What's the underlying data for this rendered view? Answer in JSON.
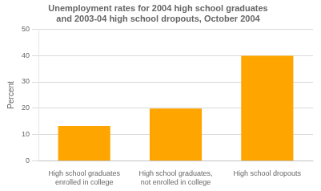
{
  "chart_data": {
    "type": "bar",
    "title": "Unemployment rates for 2004 high school graduates\nand 2003-04 high school dropouts, October 2004",
    "categories": [
      "High school graduates\nenrolled in college",
      "High school graduates,\nnot enrolled in college",
      "High school dropouts"
    ],
    "values": [
      13.2,
      19.9,
      39.9
    ],
    "color": "#FFA500",
    "ylabel": "Percent",
    "ylim": [
      0,
      50
    ],
    "yticks": [
      0,
      10,
      20,
      30,
      40,
      50
    ],
    "grid": true
  }
}
